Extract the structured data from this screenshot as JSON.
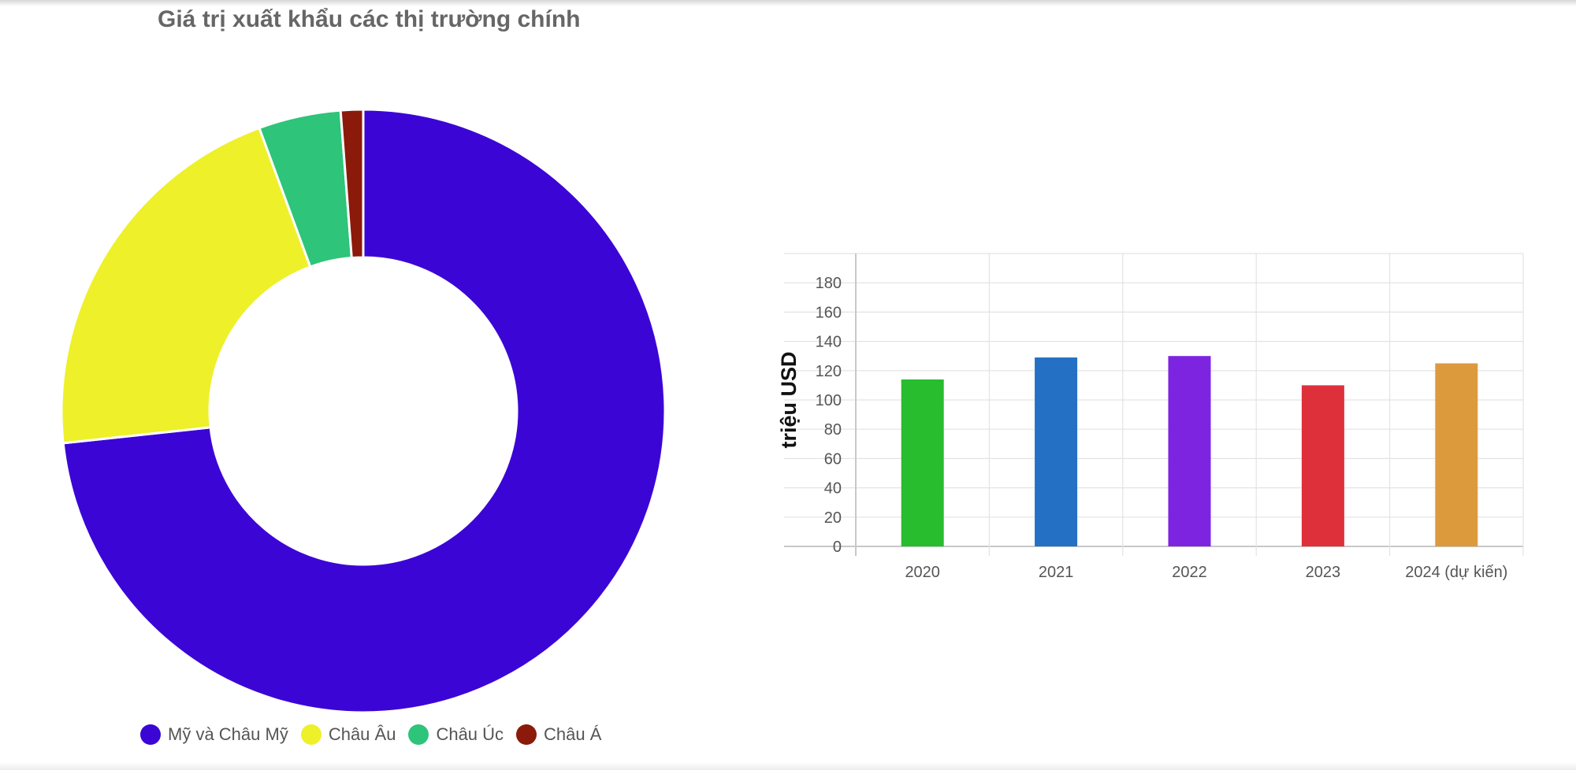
{
  "chart_data": [
    {
      "type": "pie",
      "title": "Giá trị xuất khẩu các thị trường chính",
      "categories": [
        "Mỹ và Châu Mỹ",
        "Châu Âu",
        "Châu Úc",
        "Châu Á"
      ],
      "values": [
        73.3,
        21.1,
        4.4,
        1.2
      ],
      "colors": [
        "#3b05d6",
        "#eef02a",
        "#2ec47a",
        "#8b1a0a"
      ],
      "legend": "bottom"
    },
    {
      "type": "bar",
      "categories": [
        "2020",
        "2021",
        "2022",
        "2023",
        "2024 (dự kiến)"
      ],
      "values": [
        114,
        129,
        130,
        110,
        125
      ],
      "colors": [
        "#27bd2e",
        "#2370c4",
        "#7d24e0",
        "#de303b",
        "#dd9a3d"
      ],
      "ylabel": "triệu USD",
      "ylim": [
        0,
        200
      ],
      "yticks": [
        0,
        20,
        40,
        60,
        80,
        100,
        120,
        140,
        160,
        180
      ],
      "grid": true
    }
  ]
}
